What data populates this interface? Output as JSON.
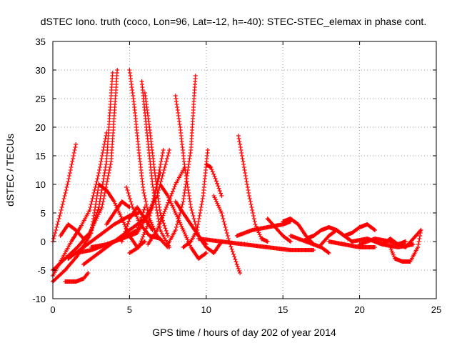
{
  "chart_data": {
    "type": "scatter",
    "title": "dSTEC Iono. truth (coco, Lon=96, Lat=-12, h=-40): STEC-STEC_elemax in phase cont.",
    "xlabel": "GPS time / hours of day 202 of year 2014",
    "ylabel": "dSTEC  / TECUs",
    "xlim": [
      0,
      25
    ],
    "ylim": [
      -10,
      35
    ],
    "xticks": [
      0,
      5,
      10,
      15,
      20,
      25
    ],
    "yticks": [
      -10,
      -5,
      0,
      5,
      10,
      15,
      20,
      25,
      30,
      35
    ],
    "grid": true,
    "legend": "none",
    "marker": "plus",
    "color": "#ff0000",
    "series": [
      {
        "x": [
          0.0,
          0.5,
          1.0,
          1.5
        ],
        "y": [
          0.0,
          5.0,
          10.5,
          17.0
        ]
      },
      {
        "x": [
          0.0,
          0.6,
          1.2,
          1.8,
          2.4,
          3.0,
          3.5
        ],
        "y": [
          -6.0,
          -3.0,
          0.0,
          2.5,
          5.5,
          12.0,
          19.0
        ]
      },
      {
        "x": [
          0.0,
          0.8,
          1.6,
          2.4,
          3.2,
          3.8,
          4.2
        ],
        "y": [
          -5.0,
          -3.0,
          -1.0,
          1.5,
          6.0,
          14.0,
          30.0
        ]
      },
      {
        "x": [
          0.0,
          0.8,
          1.6,
          2.4,
          3.0,
          3.5,
          3.9
        ],
        "y": [
          -7.0,
          -5.0,
          -2.5,
          1.0,
          6.0,
          14.0,
          29.5
        ]
      },
      {
        "x": [
          0.5,
          1.0,
          1.5,
          2.0,
          2.5,
          3.0
        ],
        "y": [
          1.0,
          3.0,
          2.0,
          0.5,
          1.5,
          10.0
        ]
      },
      {
        "x": [
          0.8,
          1.5,
          2.0,
          2.3
        ],
        "y": [
          -7.0,
          -7.0,
          -6.5,
          -5.5
        ]
      },
      {
        "x": [
          1.0,
          2.0,
          3.0,
          4.0,
          5.0,
          5.6
        ],
        "y": [
          -3.0,
          -1.0,
          1.0,
          3.0,
          4.5,
          5.0
        ]
      },
      {
        "x": [
          1.5,
          2.5,
          3.5,
          4.5,
          5.5,
          6.0
        ],
        "y": [
          -2.0,
          -1.5,
          -0.5,
          0.5,
          2.0,
          6.0
        ]
      },
      {
        "x": [
          2.0,
          3.0,
          4.0,
          5.0,
          6.0,
          6.8,
          7.6
        ],
        "y": [
          -4.0,
          -2.0,
          0.0,
          2.0,
          4.0,
          8.0,
          16.0
        ]
      },
      {
        "x": [
          2.5,
          3.5,
          4.5,
          5.5,
          6.5,
          7.2
        ],
        "y": [
          -1.0,
          -0.5,
          0.5,
          1.5,
          6.0,
          16.0
        ]
      },
      {
        "x": [
          3.0,
          3.5,
          4.0,
          4.5,
          5.0,
          5.5,
          6.0
        ],
        "y": [
          10.0,
          9.0,
          7.0,
          4.0,
          1.0,
          -1.0,
          0.0
        ]
      },
      {
        "x": [
          3.5,
          4.0,
          4.5,
          5.0
        ],
        "y": [
          3.0,
          5.0,
          7.0,
          6.0
        ]
      },
      {
        "x": [
          4.5,
          5.0,
          5.5,
          6.0,
          6.5
        ],
        "y": [
          0.0,
          4.0,
          6.0,
          4.0,
          2.0
        ]
      },
      {
        "x": [
          4.8,
          5.2,
          5.7,
          6.3,
          7.0
        ],
        "y": [
          9.5,
          6.0,
          3.0,
          1.0,
          0.5
        ]
      },
      {
        "x": [
          5.0,
          5.3,
          5.6,
          5.9,
          6.3,
          6.8,
          7.5
        ],
        "y": [
          30.0,
          24.0,
          16.0,
          9.0,
          4.0,
          1.0,
          -1.0
        ]
      },
      {
        "x": [
          5.8,
          6.1,
          6.5,
          7.0,
          7.6
        ],
        "y": [
          28.0,
          20.0,
          10.0,
          2.0,
          -1.0
        ]
      },
      {
        "x": [
          6.0,
          6.3,
          6.6,
          7.0,
          7.5
        ],
        "y": [
          26.0,
          20.0,
          13.0,
          5.0,
          1.0
        ]
      },
      {
        "x": [
          5.0,
          5.6,
          6.2,
          6.6,
          7.0
        ],
        "y": [
          -2.0,
          -1.0,
          3.0,
          8.0,
          12.0
        ]
      },
      {
        "x": [
          6.2,
          6.8,
          7.4,
          8.0,
          8.6
        ],
        "y": [
          -0.5,
          2.0,
          6.0,
          10.0,
          13.0
        ]
      },
      {
        "x": [
          8.0,
          8.3,
          8.6,
          9.0,
          9.5,
          10.0
        ],
        "y": [
          25.5,
          20.0,
          13.0,
          6.0,
          1.0,
          -0.5
        ]
      },
      {
        "x": [
          7.5,
          8.0,
          8.5,
          9.0,
          9.3
        ],
        "y": [
          -0.5,
          2.0,
          7.0,
          16.0,
          29.0
        ]
      },
      {
        "x": [
          7.0,
          7.5,
          8.0,
          8.5,
          9.0,
          9.5,
          10.0
        ],
        "y": [
          10.0,
          8.0,
          5.0,
          2.0,
          -1.0,
          -3.0,
          -2.0
        ]
      },
      {
        "x": [
          8.0,
          8.5,
          9.0,
          9.5,
          10.0,
          10.5,
          11.0
        ],
        "y": [
          7.0,
          5.0,
          3.0,
          1.0,
          -1.0,
          -2.0,
          0.0
        ]
      },
      {
        "x": [
          8.5,
          9.0,
          9.4,
          9.8,
          10.1
        ],
        "y": [
          -1.0,
          0.0,
          2.0,
          8.0,
          16.0
        ]
      },
      {
        "x": [
          10.0,
          10.3,
          10.6,
          11.0
        ],
        "y": [
          13.5,
          13.0,
          11.0,
          8.0
        ]
      },
      {
        "x": [
          10.5,
          11.0,
          11.5,
          12.0,
          12.2
        ],
        "y": [
          8.0,
          5.0,
          0.0,
          -4.0,
          -5.5
        ]
      },
      {
        "x": [
          12.1,
          12.4,
          12.8,
          13.2,
          13.6,
          14.0
        ],
        "y": [
          18.5,
          14.0,
          8.0,
          3.0,
          0.5,
          0.0
        ]
      },
      {
        "x": [
          9.5,
          11.0,
          12.5,
          14.0,
          15.5,
          17.0
        ],
        "y": [
          0.5,
          0.0,
          -0.5,
          -1.0,
          -1.5,
          -1.5
        ]
      },
      {
        "x": [
          12.0,
          13.0,
          14.0,
          15.0,
          15.5
        ],
        "y": [
          1.0,
          2.0,
          2.5,
          3.0,
          3.5
        ]
      },
      {
        "x": [
          14.0,
          14.5,
          15.0,
          15.5
        ],
        "y": [
          4.0,
          2.5,
          1.0,
          0.0
        ]
      },
      {
        "x": [
          15.0,
          15.5,
          16.0,
          16.5,
          17.0
        ],
        "y": [
          3.5,
          4.0,
          3.0,
          1.0,
          -0.5
        ]
      },
      {
        "x": [
          15.5,
          16.5,
          17.5,
          18.0
        ],
        "y": [
          1.0,
          0.0,
          -1.0,
          -2.0
        ]
      },
      {
        "x": [
          16.5,
          17.0,
          17.5,
          18.0,
          18.5,
          19.0
        ],
        "y": [
          0.5,
          1.0,
          2.0,
          2.5,
          2.0,
          1.0
        ]
      },
      {
        "x": [
          17.5,
          18.0,
          18.5,
          19.0,
          19.5
        ],
        "y": [
          -0.5,
          1.0,
          2.0,
          1.0,
          0.0
        ]
      },
      {
        "x": [
          18.0,
          19.0,
          20.0,
          21.0
        ],
        "y": [
          0.0,
          -0.5,
          -1.0,
          -1.0
        ]
      },
      {
        "x": [
          19.0,
          19.5,
          20.0,
          20.5,
          21.0
        ],
        "y": [
          1.0,
          1.5,
          2.5,
          3.0,
          2.0
        ]
      },
      {
        "x": [
          19.5,
          20.5,
          21.5,
          22.5,
          23.5
        ],
        "y": [
          0.0,
          0.5,
          -0.5,
          -1.0,
          -0.5
        ]
      },
      {
        "x": [
          20.0,
          21.0,
          22.0,
          23.0,
          24.0
        ],
        "y": [
          -0.5,
          0.5,
          0.0,
          -1.0,
          2.0
        ]
      },
      {
        "x": [
          22.0,
          22.3,
          22.8,
          23.3,
          23.8,
          24.0
        ],
        "y": [
          -1.0,
          -3.0,
          -3.5,
          -3.5,
          -1.0,
          2.0
        ]
      },
      {
        "x": [
          21.0,
          21.5,
          22.0,
          22.5,
          23.0
        ],
        "y": [
          0.0,
          -0.5,
          0.5,
          -0.5,
          0.0
        ]
      }
    ]
  }
}
